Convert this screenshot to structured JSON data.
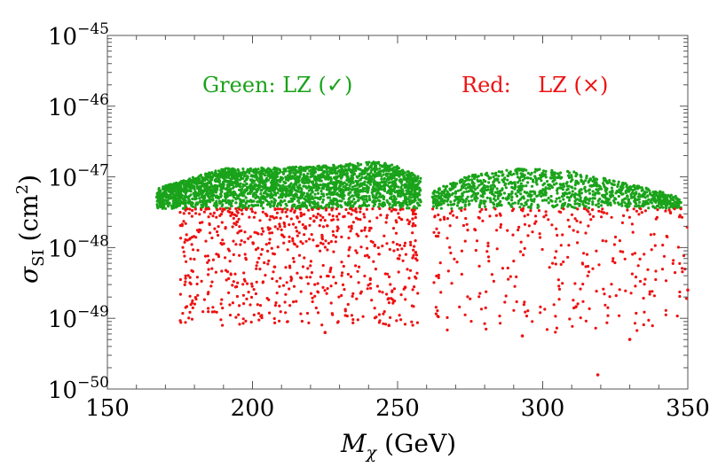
{
  "chart_data": {
    "type": "scatter",
    "title": "",
    "xlabel": "M_χ (GeV)",
    "ylabel": "σ_SI (cm²)",
    "xlim": [
      150,
      350
    ],
    "ylim_log10": [
      -50,
      -45
    ],
    "yscale": "log",
    "grid": false,
    "x_ticks": [
      "150",
      "200",
      "250",
      "300",
      "350"
    ],
    "y_ticks": [
      {
        "base": "10",
        "exp": "−50",
        "log10": -50
      },
      {
        "base": "10",
        "exp": "−49",
        "log10": -49
      },
      {
        "base": "10",
        "exp": "−48",
        "log10": -48
      },
      {
        "base": "10",
        "exp": "−47",
        "log10": -47
      },
      {
        "base": "10",
        "exp": "−46",
        "log10": -46
      },
      {
        "base": "10",
        "exp": "−45",
        "log10": -45
      }
    ],
    "annotations": [
      {
        "text": "Green:  LZ (✓)",
        "color": "#1aa31a",
        "position": "top-left"
      },
      {
        "text": "Red:    LZ (×)",
        "color": "#ee1111",
        "position": "top-right"
      }
    ],
    "series": [
      {
        "color": "#1aa31a",
        "regions": [
          {
            "x_range": [
              167,
              258
            ],
            "log10_y_lower": -47.45,
            "log10_y_upper_at": [
              [
                168,
                -47.15
              ],
              [
                180,
                -47.0
              ],
              [
                190,
                -46.88
              ],
              [
                210,
                -46.87
              ],
              [
                230,
                -46.83
              ],
              [
                243,
                -46.78
              ],
              [
                250,
                -46.85
              ],
              [
                258,
                -47.0
              ]
            ]
          },
          {
            "x_range": [
              262,
              348
            ],
            "log10_y_lower": -47.45,
            "log10_y_upper_at": [
              [
                262,
                -47.2
              ],
              [
                275,
                -46.97
              ],
              [
                295,
                -46.87
              ],
              [
                310,
                -46.92
              ],
              [
                325,
                -47.05
              ],
              [
                340,
                -47.2
              ],
              [
                348,
                -47.3
              ]
            ]
          }
        ]
      },
      {
        "color": "#ee1111",
        "regions": [
          {
            "x_range": [
              175,
              257
            ],
            "log10_y_upper": -47.45,
            "log10_y_lower": -49.1
          },
          {
            "x_range": [
              262,
              350
            ],
            "log10_y_upper": -47.45,
            "log10_y_lower": -49.2
          }
        ],
        "outliers": [
          [
            225,
            -49.2
          ],
          [
            247,
            -49.1
          ],
          [
            293,
            -49.25
          ],
          [
            319,
            -49.8
          ],
          [
            330,
            -49.3
          ],
          [
            350,
            -48.6
          ]
        ]
      }
    ]
  }
}
